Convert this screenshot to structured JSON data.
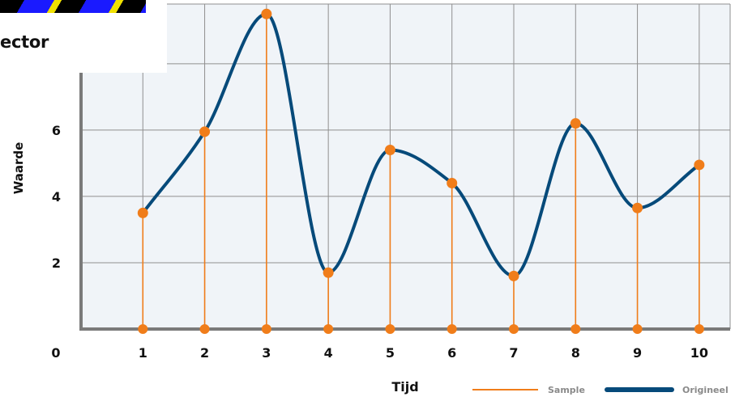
{
  "overlay": {
    "text": "ector"
  },
  "chart_data": {
    "type": "line",
    "xlabel": "Tijd",
    "ylabel": "Waarde",
    "x": [
      1,
      2,
      3,
      4,
      5,
      6,
      7,
      8,
      9,
      10
    ],
    "x_ticks": [
      "0",
      "1",
      "2",
      "3",
      "4",
      "5",
      "6",
      "7",
      "8",
      "9",
      "10"
    ],
    "y_ticks": [
      "2",
      "4",
      "6"
    ],
    "xlim": [
      0,
      10.5
    ],
    "ylim": [
      0,
      9.8
    ],
    "grid": true,
    "legend_position": "bottom-right",
    "series": [
      {
        "name": "Sample",
        "kind": "stem",
        "color": "#f07d1a",
        "values": [
          3.5,
          5.95,
          9.5,
          1.7,
          5.4,
          4.4,
          1.6,
          6.2,
          3.65,
          4.95
        ]
      },
      {
        "name": "Origineel",
        "kind": "smooth-line",
        "color": "#064a7a",
        "values": [
          3.5,
          5.95,
          9.5,
          1.7,
          5.4,
          4.4,
          1.6,
          6.2,
          3.65,
          4.95
        ]
      }
    ],
    "colors": {
      "plot_bg": "#f0f4f8",
      "grid": "#8f8f8f",
      "axis": "#7a7a7a",
      "text": "#111111",
      "legend_text": "#8a8a8a"
    }
  }
}
